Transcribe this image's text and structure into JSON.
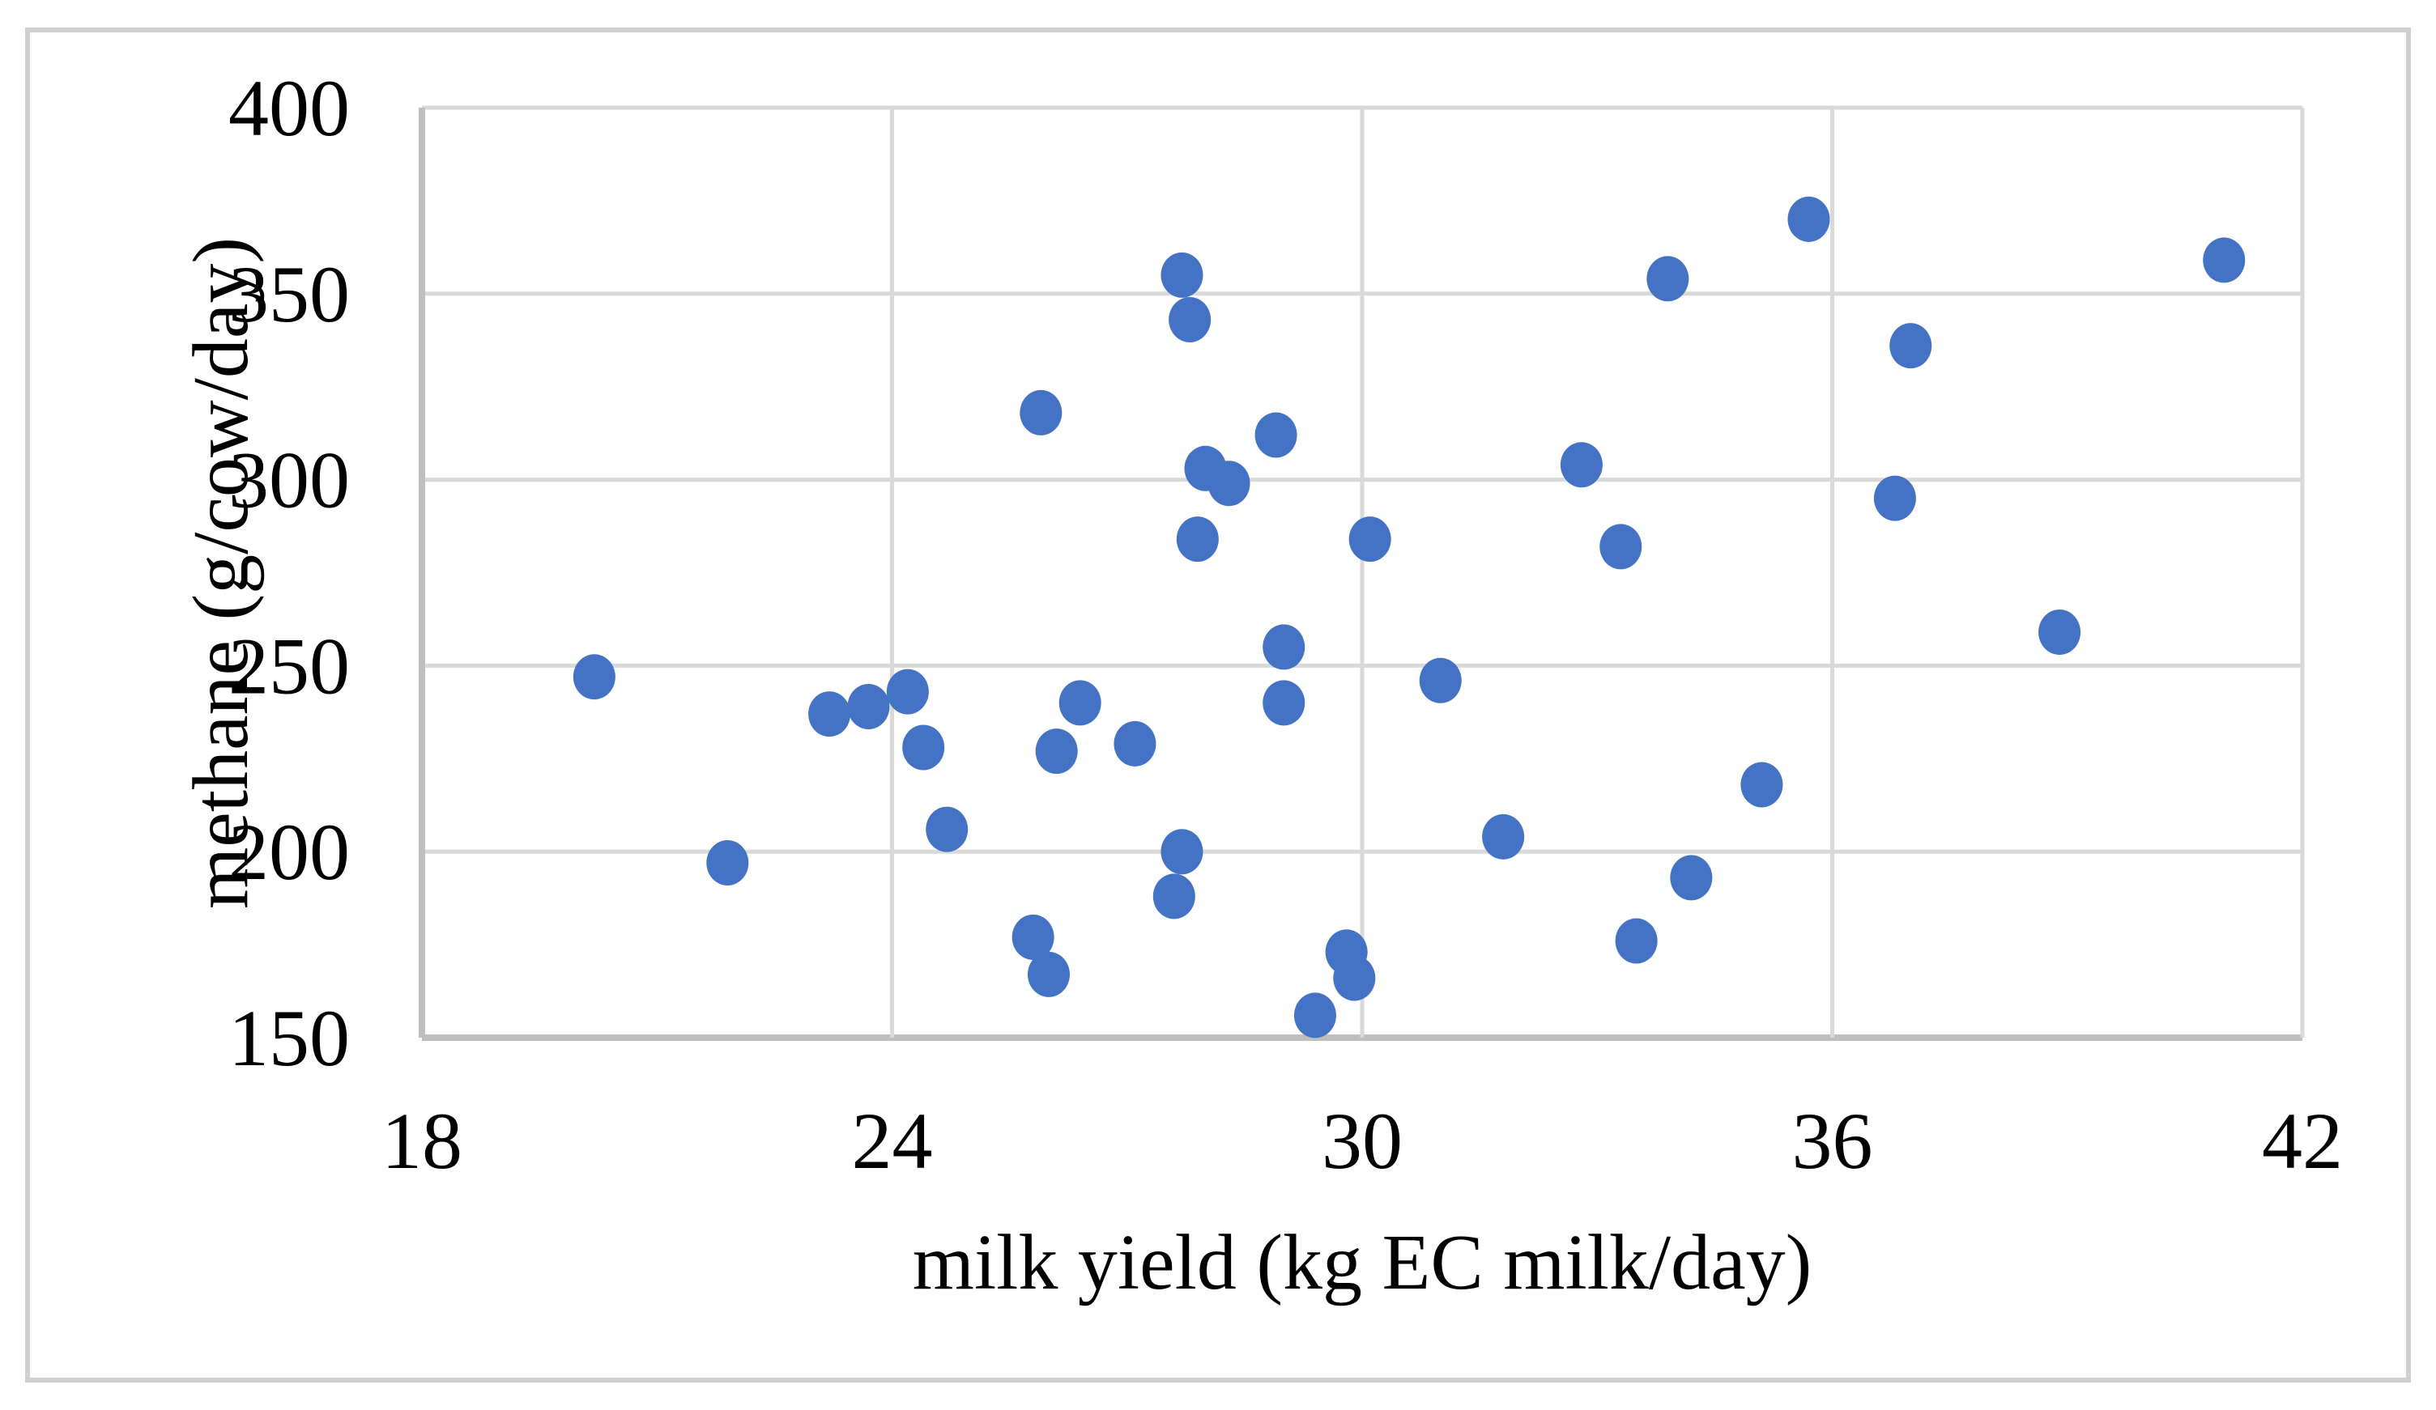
{
  "figure": {
    "background": "#FFFFFF",
    "border_color": "#CFCFCF"
  },
  "chart_data": {
    "type": "scatter",
    "title": "",
    "xlabel": "milk yield (kg EC milk/day)",
    "ylabel": "methane (g/cow/day)",
    "xlim": [
      18,
      42
    ],
    "ylim": [
      150,
      400
    ],
    "xticks": [
      18,
      24,
      30,
      36,
      42
    ],
    "yticks": [
      150,
      200,
      250,
      300,
      350,
      400
    ],
    "grid": true,
    "legend": false,
    "marker": {
      "shape": "circle",
      "color": "#4472C4",
      "radius_px": 27
    },
    "colors": {
      "gridline": "#D9D9D9",
      "axis_line": "#BFBFBF",
      "tick_text": "#000000"
    },
    "points": [
      [
        20.2,
        247
      ],
      [
        21.9,
        197
      ],
      [
        23.2,
        237
      ],
      [
        23.7,
        239
      ],
      [
        24.2,
        243
      ],
      [
        24.4,
        228
      ],
      [
        24.7,
        206
      ],
      [
        25.8,
        177
      ],
      [
        25.9,
        318
      ],
      [
        26.0,
        167
      ],
      [
        26.1,
        227
      ],
      [
        26.4,
        240
      ],
      [
        27.1,
        229
      ],
      [
        27.6,
        188
      ],
      [
        27.7,
        200
      ],
      [
        27.7,
        355
      ],
      [
        27.8,
        343
      ],
      [
        27.9,
        284
      ],
      [
        28.0,
        303
      ],
      [
        28.3,
        299
      ],
      [
        28.9,
        312
      ],
      [
        29.0,
        255
      ],
      [
        29.0,
        240
      ],
      [
        29.4,
        156
      ],
      [
        29.8,
        173
      ],
      [
        29.9,
        166
      ],
      [
        30.1,
        284
      ],
      [
        31.0,
        246
      ],
      [
        31.8,
        204
      ],
      [
        32.8,
        304
      ],
      [
        33.3,
        282
      ],
      [
        33.5,
        176
      ],
      [
        33.9,
        354
      ],
      [
        34.2,
        193
      ],
      [
        35.1,
        218
      ],
      [
        35.7,
        370
      ],
      [
        36.8,
        295
      ],
      [
        37.0,
        336
      ],
      [
        38.9,
        259
      ],
      [
        41.0,
        359
      ]
    ]
  }
}
